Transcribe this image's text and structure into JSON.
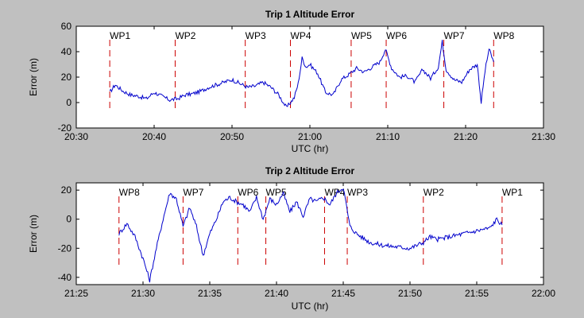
{
  "chart_data": [
    {
      "type": "line",
      "title": "Trip 1 Altitude Error",
      "xlabel": "UTC (hr)",
      "ylabel": "Error (m)",
      "x_ticks": [
        "20:30",
        "20:40",
        "20:50",
        "21:00",
        "21:10",
        "21:20",
        "21:30"
      ],
      "y_ticks": [
        -20,
        0,
        20,
        40,
        60
      ],
      "xlim_min": [
        1230,
        1290
      ],
      "ylim": [
        -20,
        60
      ],
      "grid": false,
      "line_color": "#0000cc",
      "marker_color": "#cc0000",
      "waypoints": [
        {
          "label": "WP1",
          "x_min": 1234.3
        },
        {
          "label": "WP2",
          "x_min": 1242.7
        },
        {
          "label": "WP3",
          "x_min": 1251.7
        },
        {
          "label": "WP4",
          "x_min": 1257.5
        },
        {
          "label": "WP5",
          "x_min": 1265.3
        },
        {
          "label": "WP6",
          "x_min": 1269.8
        },
        {
          "label": "WP7",
          "x_min": 1277.2
        },
        {
          "label": "WP8",
          "x_min": 1283.6
        }
      ],
      "series": [
        {
          "x_min": [
            1234.3,
            1235,
            1236,
            1237,
            1238,
            1239,
            1240,
            1241,
            1242,
            1243,
            1244,
            1245,
            1246,
            1247,
            1248,
            1249,
            1250,
            1251,
            1252,
            1253,
            1254,
            1255,
            1256,
            1257,
            1258,
            1258.5,
            1259,
            1259.5,
            1260,
            1261,
            1262,
            1263,
            1264,
            1265,
            1266,
            1267,
            1268,
            1269,
            1269.7,
            1270.5,
            1271.5,
            1272.5,
            1273.5,
            1274.5,
            1275.5,
            1276.5,
            1277,
            1277.5,
            1278.5,
            1279.5,
            1280.5,
            1281.5,
            1282,
            1282.5,
            1283,
            1283.6
          ],
          "y": [
            8,
            14,
            9,
            6,
            5,
            3,
            8,
            5,
            2,
            3,
            6,
            7,
            9,
            12,
            14,
            16,
            18,
            15,
            12,
            13,
            16,
            12,
            6,
            -4,
            4,
            15,
            35,
            28,
            30,
            23,
            8,
            6,
            18,
            22,
            27,
            24,
            28,
            32,
            42,
            27,
            20,
            21,
            16,
            26,
            19,
            28,
            48,
            26,
            18,
            16,
            26,
            30,
            0,
            25,
            42,
            32
          ]
        }
      ]
    },
    {
      "type": "line",
      "title": "Trip 2 Altitude Error",
      "xlabel": "UTC (hr)",
      "ylabel": "Error (m)",
      "x_ticks": [
        "21:25",
        "21:30",
        "21:35",
        "21:40",
        "21:45",
        "21:50",
        "21:55",
        "22:00"
      ],
      "y_ticks": [
        -40,
        -20,
        0,
        20
      ],
      "xlim_min": [
        1285,
        1320
      ],
      "ylim": [
        -45,
        25
      ],
      "grid": false,
      "line_color": "#0000cc",
      "marker_color": "#cc0000",
      "waypoints": [
        {
          "label": "WP8",
          "x_min": 1288.2
        },
        {
          "label": "WP7",
          "x_min": 1293.0
        },
        {
          "label": "WP6",
          "x_min": 1297.1
        },
        {
          "label": "WP5",
          "x_min": 1299.2
        },
        {
          "label": "WP4",
          "x_min": 1303.6
        },
        {
          "label": "WP3",
          "x_min": 1305.3
        },
        {
          "label": "WP2",
          "x_min": 1311.0
        },
        {
          "label": "WP1",
          "x_min": 1316.9
        }
      ],
      "series": [
        {
          "x_min": [
            1288.2,
            1288.8,
            1289.4,
            1290,
            1290.5,
            1291,
            1291.5,
            1292,
            1292.5,
            1293,
            1293.5,
            1294,
            1294.5,
            1295,
            1295.5,
            1296,
            1296.5,
            1297,
            1297.5,
            1298,
            1298.5,
            1299,
            1299.5,
            1300,
            1300.5,
            1301,
            1301.5,
            1302,
            1302.5,
            1303,
            1303.5,
            1304,
            1304.5,
            1305,
            1305.5,
            1306,
            1306.5,
            1307,
            1308,
            1309,
            1310,
            1311,
            1311.5,
            1312,
            1313,
            1314,
            1315,
            1316,
            1316.5,
            1316.9
          ],
          "y": [
            -10,
            -3,
            -12,
            -27,
            -42,
            -20,
            0,
            18,
            14,
            -5,
            8,
            -5,
            -25,
            -10,
            0,
            12,
            15,
            12,
            10,
            5,
            15,
            0,
            14,
            10,
            18,
            5,
            12,
            2,
            14,
            12,
            15,
            10,
            18,
            22,
            -5,
            -10,
            -13,
            -16,
            -18,
            -19,
            -20,
            -16,
            -12,
            -14,
            -12,
            -10,
            -8,
            -6,
            0,
            -4
          ]
        }
      ]
    }
  ]
}
